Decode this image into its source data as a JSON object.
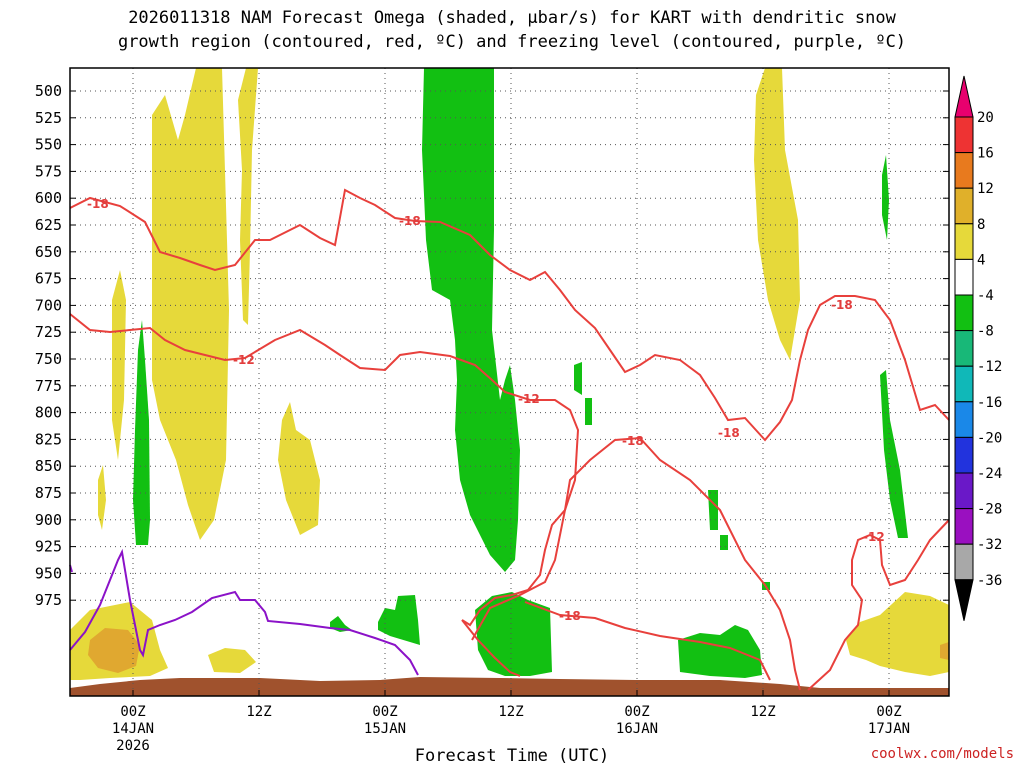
{
  "chart_data": {
    "type": "heatmap",
    "title_line1": "2026011318 NAM Forecast Omega (shaded, μbar/s) for KART with dendritic snow",
    "title_line2": "growth region (contoured, red, ºC) and freezing level (contoured, purple, ºC)",
    "xlabel": "Forecast Time (UTC)",
    "credit": "coolwx.com/models",
    "y_ticks": [
      "500",
      "525",
      "550",
      "575",
      "600",
      "625",
      "650",
      "675",
      "700",
      "725",
      "750",
      "775",
      "800",
      "825",
      "850",
      "875",
      "900",
      "925",
      "950",
      "975"
    ],
    "x_ticks": [
      {
        "label": "00Z",
        "sub1": "14JAN",
        "sub2": "2026"
      },
      {
        "label": "12Z",
        "sub1": "",
        "sub2": ""
      },
      {
        "label": "00Z",
        "sub1": "15JAN",
        "sub2": ""
      },
      {
        "label": "12Z",
        "sub1": "",
        "sub2": ""
      },
      {
        "label": "00Z",
        "sub1": "16JAN",
        "sub2": ""
      },
      {
        "label": "12Z",
        "sub1": "",
        "sub2": ""
      },
      {
        "label": "00Z",
        "sub1": "17JAN",
        "sub2": ""
      }
    ],
    "colorbar": {
      "labels": [
        "20",
        "16",
        "12",
        "8",
        "4",
        "-4",
        "-8",
        "-12",
        "-16",
        "-20",
        "-24",
        "-28",
        "-32",
        "-36"
      ],
      "colors": [
        "#e8006e",
        "#ee3333",
        "#e87a1e",
        "#e0b02a",
        "#e6d93a",
        "#ffffff",
        "#12c012",
        "#18b878",
        "#10b8b8",
        "#1a88e8",
        "#2233dd",
        "#6a18c8",
        "#9a10c0",
        "#a8a8a8",
        "#000000"
      ]
    },
    "contour_labels": {
      "red": [
        "-18",
        "-18",
        "-12",
        "-12",
        "-18",
        "-18",
        "-18",
        "-12",
        "-18"
      ]
    },
    "grid": true,
    "colors": {
      "dgz": "#e8403c",
      "freezing": "#8b12c8",
      "terrain": "#a0522d",
      "positive": "#e6d93a",
      "negative": "#12c012",
      "strong_positive": "#e0a830"
    }
  }
}
